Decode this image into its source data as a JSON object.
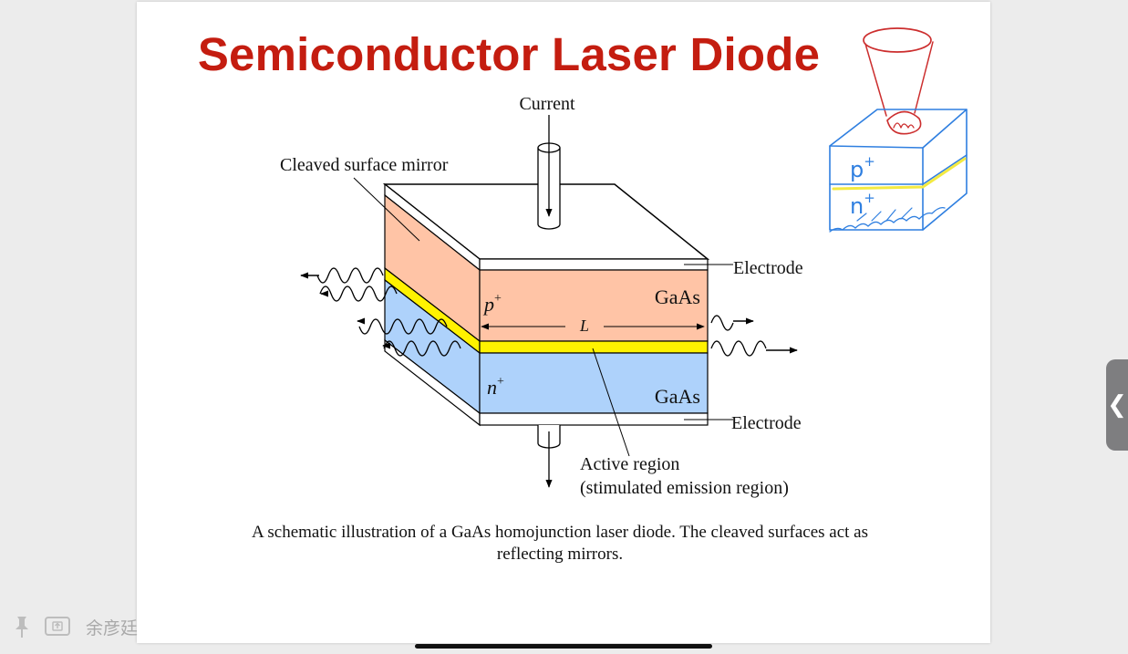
{
  "slide": {
    "title": "Semiconductor Laser Diode",
    "caption_line1": "A schematic illustration of a GaAs homojunction laser diode. The cleaved surfaces act as",
    "caption_line2": "reflecting mirrors."
  },
  "diagram": {
    "label_current": "Current",
    "label_mirror": "Cleaved surface mirror",
    "label_electrode_top": "Electrode",
    "label_electrode_bottom": "Electrode",
    "label_gaas_top": "GaAs",
    "label_gaas_bottom": "GaAs",
    "label_p": "p",
    "label_p_sup": "+",
    "label_n": "n",
    "label_n_sup": "+",
    "label_length": "L",
    "label_active_1": "Active region",
    "label_active_2": "(stimulated emission region)",
    "colors": {
      "p_layer": "#ffc4a6",
      "n_layer": "#aed2fb",
      "active": "#fff200",
      "sketch": "#2f7fe0",
      "sketch_red": "#cc2e2e",
      "sketch_yellow": "#f3ea42"
    }
  },
  "annotation": {
    "sketch_p": "p",
    "sketch_p_sup": "+",
    "sketch_n": "n",
    "sketch_n_sup": "+"
  },
  "toolbar": {
    "user_name": "余彦廷",
    "pin_icon": "pin-icon",
    "screen_icon": "screen-share-icon"
  },
  "sidebar_handle": {
    "glyph": "❮"
  }
}
